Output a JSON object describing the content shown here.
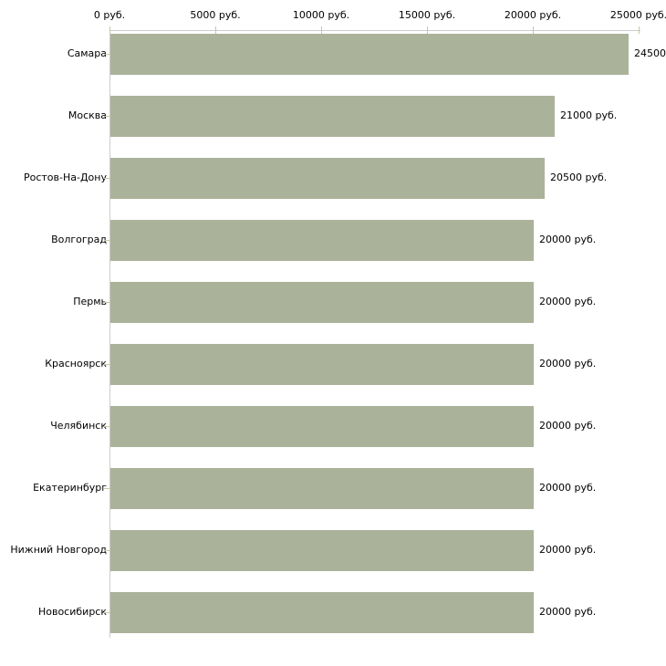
{
  "chart_data": {
    "type": "bar",
    "orientation": "horizontal",
    "title": "",
    "xlabel": "",
    "ylabel": "",
    "categories": [
      "Самара",
      "Москва",
      "Ростов-На-Дону",
      "Волгоград",
      "Пермь",
      "Красноярск",
      "Челябинск",
      "Екатеринбург",
      "Нижний Новгород",
      "Новосибирск"
    ],
    "values": [
      24500,
      21000,
      20500,
      20000,
      20000,
      20000,
      20000,
      20000,
      20000,
      20000
    ],
    "value_labels": [
      "24500",
      "21000 руб.",
      "20500 руб.",
      "20000 руб.",
      "20000 руб.",
      "20000 руб.",
      "20000 руб.",
      "20000 руб.",
      "20000 руб.",
      "20000 руб."
    ],
    "x_axis": {
      "position": "top",
      "range": [
        0,
        25000
      ],
      "tick_values": [
        0,
        5000,
        10000,
        15000,
        20000,
        25000
      ],
      "tick_labels": [
        "0 руб.",
        "5000 руб.",
        "10000 руб.",
        "15000 руб.",
        "20000 руб.",
        "25000 руб."
      ]
    },
    "grid": false,
    "legend": false,
    "colors": {
      "bar": "#abb29a",
      "axis_line": "#cccccc",
      "tick_mark": "#c8c8a0",
      "text": "#000000",
      "background": "#ffffff"
    }
  }
}
